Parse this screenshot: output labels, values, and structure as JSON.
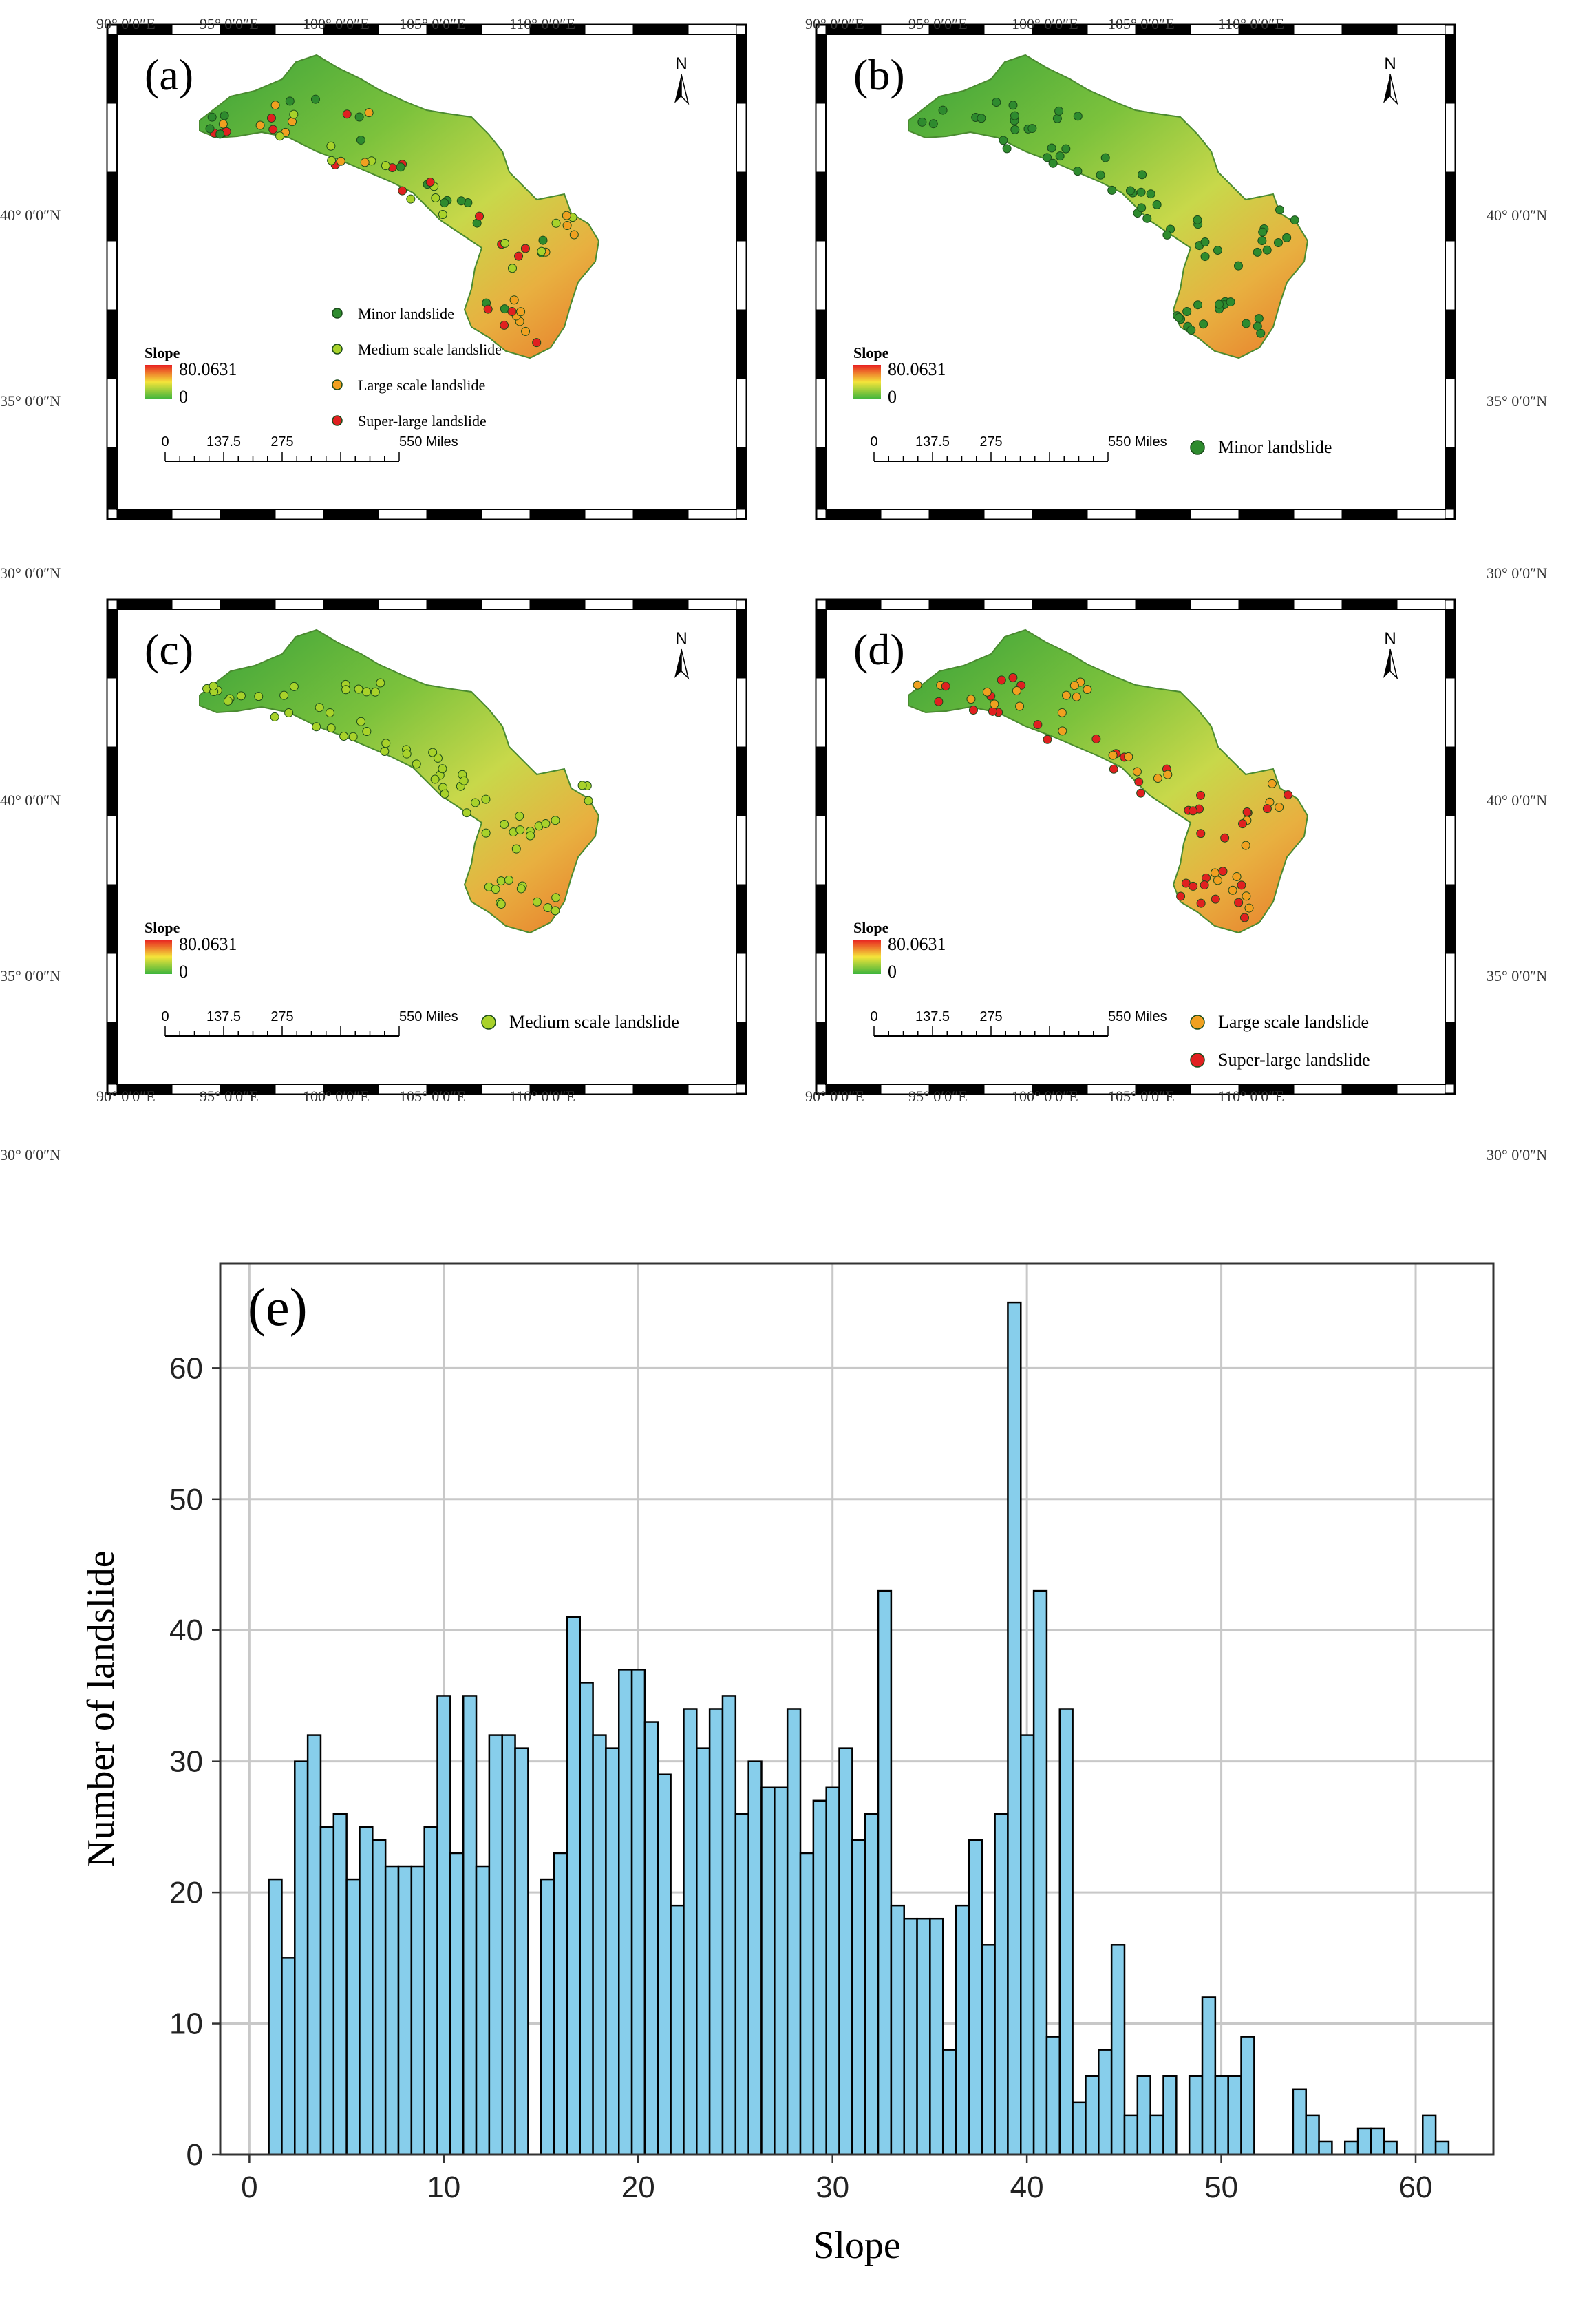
{
  "maps": [
    {
      "label": "(a)",
      "legend_items": [
        {
          "text": "Minor landslide",
          "color": "#2e8b2e"
        },
        {
          "text": "Medium scale landslide",
          "color": "#a8d22a"
        },
        {
          "text": "Large scale landslide",
          "color": "#f0a020"
        },
        {
          "text": "Super-large landslide",
          "color": "#e02020"
        }
      ],
      "lon_labels_top": [
        "90° 0′0″E",
        "95° 0′0″E",
        "100° 0′0″E",
        "105° 0′0″E",
        "110° 0′0″E"
      ],
      "lon_labels_bottom": [],
      "lat_labels": [
        "40° 0′0″N",
        "35° 0′0″N",
        "30° 0′0″N"
      ]
    },
    {
      "label": "(b)",
      "legend_items": [
        {
          "text": "Minor landslide",
          "color": "#2e8b2e"
        }
      ],
      "lon_labels_top": [
        "90° 0′0″E",
        "95° 0′0″E",
        "100° 0′0″E",
        "105° 0′0″E",
        "110° 0′0″E"
      ],
      "lon_labels_bottom": [],
      "lat_labels": [
        "40° 0′0″N",
        "35° 0′0″N",
        "30° 0′0″N"
      ]
    },
    {
      "label": "(c)",
      "legend_items": [
        {
          "text": "Medium scale landslide",
          "color": "#a8d22a"
        }
      ],
      "lon_labels_top": [],
      "lon_labels_bottom": [
        "90° 0′0″E",
        "95° 0′0″E",
        "100° 0′0″E",
        "105° 0′0″E",
        "110° 0′0″E"
      ],
      "lat_labels": [
        "40° 0′0″N",
        "35° 0′0″N",
        "30° 0′0″N"
      ]
    },
    {
      "label": "(d)",
      "legend_items": [
        {
          "text": "Large scale landslide",
          "color": "#f0a020"
        },
        {
          "text": "Super-large landslide",
          "color": "#e02020"
        }
      ],
      "lon_labels_top": [],
      "lon_labels_bottom": [
        "90° 0′0″E",
        "95° 0′0″E",
        "100° 0′0″E",
        "105° 0′0″E",
        "110° 0′0″E"
      ],
      "lat_labels": [
        "40° 0′0″N",
        "35° 0′0″N",
        "30° 0′0″N"
      ]
    }
  ],
  "map_common": {
    "north_label": "N",
    "slope_title": "Slope",
    "slope_max": "80.0631",
    "slope_min": "0",
    "scale_labels": [
      "0",
      "137.5",
      "275",
      "550 Miles"
    ]
  },
  "colors": {
    "bar_fill": "#87ceeb",
    "bar_stroke": "#000000",
    "grid": "#c8c8c8"
  },
  "chart_data": {
    "type": "bar",
    "panel_label": "(e)",
    "title": "",
    "xlabel": "Slope",
    "ylabel": "Number of landslide",
    "xlim": [
      -1.5,
      64
    ],
    "ylim": [
      0,
      68
    ],
    "xticks": [
      0,
      10,
      20,
      30,
      40,
      50,
      60
    ],
    "yticks": [
      0,
      10,
      20,
      30,
      40,
      50,
      60
    ],
    "bin_width": 0.667,
    "bin_start": 1.0,
    "values": [
      21,
      15,
      30,
      32,
      25,
      26,
      21,
      25,
      24,
      22,
      22,
      22,
      25,
      35,
      23,
      35,
      22,
      32,
      32,
      31,
      0,
      21,
      23,
      41,
      36,
      32,
      31,
      37,
      37,
      33,
      29,
      19,
      34,
      31,
      34,
      35,
      26,
      30,
      28,
      28,
      34,
      23,
      27,
      28,
      31,
      24,
      26,
      43,
      19,
      18,
      18,
      18,
      8,
      19,
      24,
      16,
      26,
      65,
      32,
      43,
      9,
      34,
      4,
      6,
      8,
      16,
      3,
      6,
      3,
      6,
      0,
      6,
      12,
      6,
      6,
      9,
      0,
      0,
      0,
      5,
      3,
      1,
      0,
      1,
      2,
      2,
      1,
      0,
      0,
      3,
      1
    ]
  }
}
